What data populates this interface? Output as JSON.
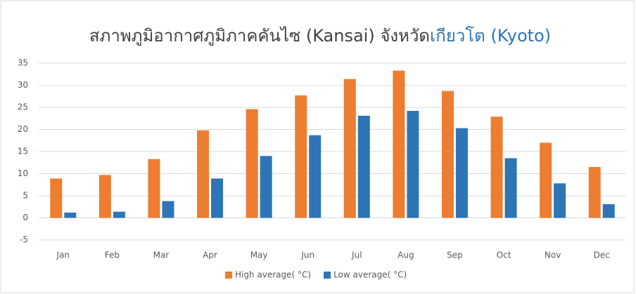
{
  "chart_data": {
    "type": "bar",
    "title": [
      "สภาพภูมิอากาศภูมิภาคคันไซ (Kansai) จังหวัด",
      "เกียวโต (Kyoto)"
    ],
    "categories": [
      "Jan",
      "Feb",
      "Mar",
      "Apr",
      "May",
      "Jun",
      "Jul",
      "Aug",
      "Sep",
      "Oct",
      "Nov",
      "Dec"
    ],
    "series": [
      {
        "name": "High average( °C)",
        "color": "#ed7d31",
        "values": [
          8.9,
          9.7,
          13.3,
          19.8,
          24.6,
          27.7,
          31.4,
          33.3,
          28.7,
          22.9,
          17.0,
          11.5
        ]
      },
      {
        "name": "Low average( °C)",
        "color": "#2e75b6",
        "values": [
          1.2,
          1.4,
          3.8,
          8.9,
          14.0,
          18.7,
          23.1,
          24.2,
          20.3,
          13.5,
          7.8,
          3.1
        ]
      }
    ],
    "ylim": [
      -5,
      35
    ],
    "yticks": [
      -5,
      0,
      5,
      10,
      15,
      20,
      25,
      30,
      35
    ],
    "grid": true,
    "legend": "bottom"
  }
}
